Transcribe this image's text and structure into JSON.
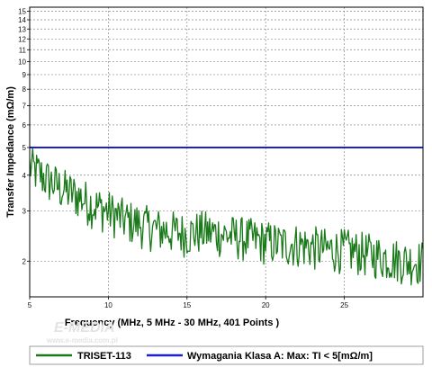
{
  "chart_data": {
    "type": "line",
    "title": "",
    "xlabel": "Frequency (MHz, 5 MHz - 30 MHz, 401 Points )",
    "ylabel": "Transfer Impedance (mΩ/m)",
    "xlim": [
      5,
      30
    ],
    "ylim": [
      1.5,
      15.5
    ],
    "yscale": "log",
    "x_ticks": [
      5,
      10,
      15,
      20,
      25
    ],
    "y_ticks": [
      2,
      3,
      4,
      5,
      6,
      7,
      8,
      9,
      10,
      11,
      12,
      13,
      14,
      15
    ],
    "grid": true,
    "legend": "bottom",
    "series": [
      {
        "name": "TRISET-113",
        "color": "#1a7a1a",
        "x": [
          5,
          6,
          7,
          8,
          9,
          10,
          11,
          12,
          13,
          14,
          15,
          16,
          17,
          18,
          19,
          20,
          21,
          22,
          23,
          24,
          25,
          26,
          27,
          28,
          29,
          30
        ],
        "y": [
          4.3,
          3.9,
          3.6,
          3.4,
          3.15,
          3.0,
          2.8,
          2.7,
          2.6,
          2.55,
          2.5,
          2.55,
          2.5,
          2.45,
          2.4,
          2.35,
          2.3,
          2.3,
          2.25,
          2.2,
          2.2,
          2.15,
          2.1,
          2.05,
          2.0,
          2.0
        ],
        "noise": 0.18
      },
      {
        "name": "Wymagania Klasa A: Max: TI < 5[mΩ/m]",
        "color": "#1f1fcc",
        "x": [
          5,
          30
        ],
        "y": [
          5,
          5
        ]
      }
    ]
  },
  "watermark": {
    "logo": "E-MEDIA",
    "url": "www.e-media.com.pl"
  }
}
